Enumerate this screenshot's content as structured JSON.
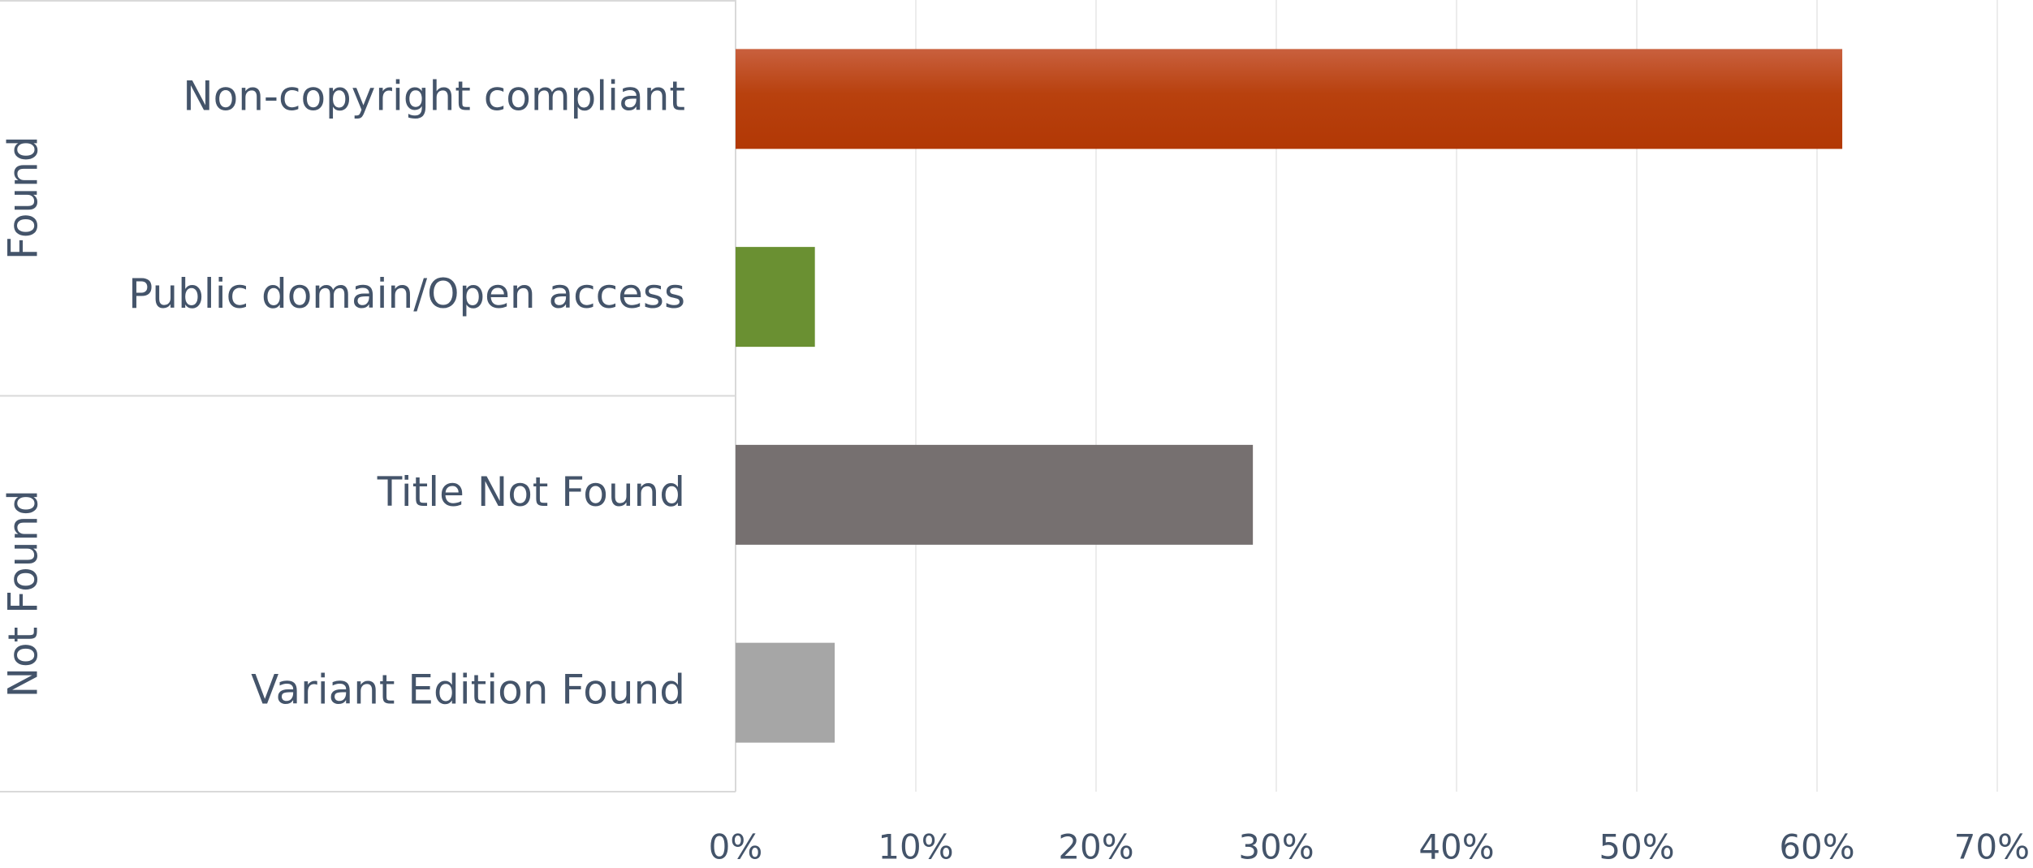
{
  "chart_data": {
    "type": "bar",
    "orientation": "horizontal",
    "groups": [
      {
        "label": "Found",
        "categories": [
          "Non-copyright compliant",
          "Public domain/Open access"
        ]
      },
      {
        "label": "Not Found",
        "categories": [
          "Title Not Found",
          "Variant Edition Found"
        ]
      }
    ],
    "categories": [
      "Non-copyright compliant",
      "Public domain/Open access",
      "Title Not Found",
      "Variant Edition Found"
    ],
    "values": [
      61.4,
      4.4,
      28.7,
      5.5
    ],
    "value_unit": "percent",
    "xlim": [
      0,
      70
    ],
    "xticks": [
      "0%",
      "10%",
      "20%",
      "30%",
      "40%",
      "50%",
      "60%",
      "70%"
    ],
    "title": "",
    "xlabel": "",
    "ylabel": "",
    "grid": "vertical",
    "legend": "none",
    "colors": [
      "#c0420f",
      "#6a9032",
      "#767070",
      "#a6a6a6"
    ]
  }
}
